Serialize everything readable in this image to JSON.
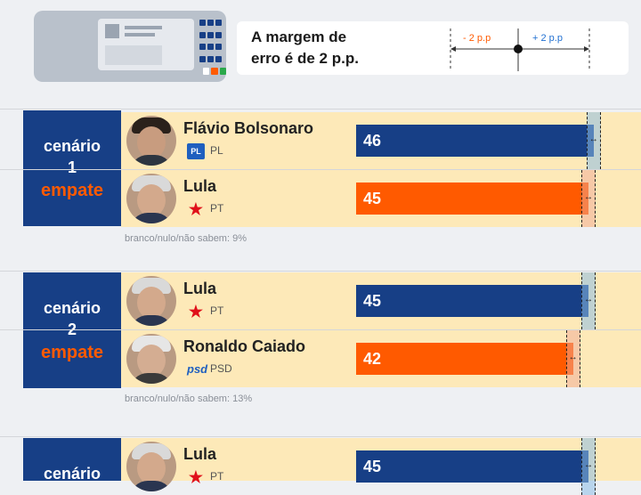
{
  "header": {
    "note_line1": "A margem de",
    "note_line2": "erro é de 2 p.p.",
    "minus_label": "-  2 p.p",
    "plus_label": "+  2 p.p"
  },
  "colors": {
    "navy": "#173f86",
    "orange": "#ff5a00",
    "cream": "#fde9b8"
  },
  "scenarios": [
    {
      "word": "cenário",
      "number": "1",
      "status": "empate",
      "candidates": [
        {
          "name": "Flávio Bolsonaro",
          "party": "PL",
          "party_icon": "PL",
          "value": "46",
          "bar_value": 46,
          "color": "blue"
        },
        {
          "name": "Lula",
          "party": "PT",
          "party_icon": "PT",
          "value": "45",
          "bar_value": 45,
          "color": "orange"
        }
      ],
      "blank_note": "branco/nulo/não sabem: 9%"
    },
    {
      "word": "cenário",
      "number": "2",
      "status": "empate",
      "candidates": [
        {
          "name": "Lula",
          "party": "PT",
          "party_icon": "PT",
          "value": "45",
          "bar_value": 45,
          "color": "blue"
        },
        {
          "name": "Ronaldo Caiado",
          "party": "PSD",
          "party_icon": "psd",
          "value": "42",
          "bar_value": 42,
          "color": "orange"
        }
      ],
      "blank_note": "branco/nulo/não sabem: 13%"
    },
    {
      "word": "cenário",
      "candidates": [
        {
          "name": "Lula",
          "party": "PT",
          "party_icon": "PT",
          "value": "45",
          "bar_value": 45,
          "color": "blue"
        }
      ]
    }
  ]
}
